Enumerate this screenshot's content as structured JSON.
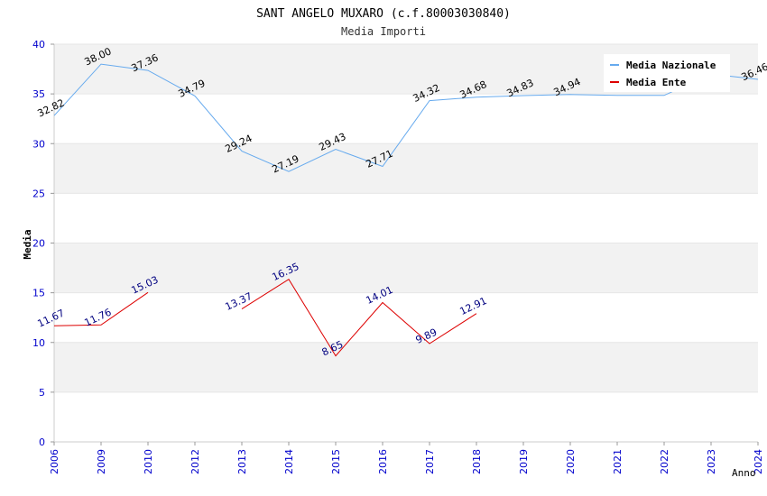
{
  "chart_data": {
    "type": "line",
    "title": "SANT ANGELO MUXARO (c.f.80003030840)",
    "subtitle": "Media Importi",
    "xlabel": "Anno",
    "ylabel": "Media",
    "ylim": [
      0,
      40
    ],
    "yticks": [
      0,
      5,
      10,
      15,
      20,
      25,
      30,
      35,
      40
    ],
    "grid": true,
    "legend_position": "top-right",
    "categories": [
      "2006",
      "2009",
      "2010",
      "2012",
      "2013",
      "2014",
      "2015",
      "2016",
      "2017",
      "2018",
      "2019",
      "2020",
      "2021",
      "2022",
      "2023",
      "2024"
    ],
    "series": [
      {
        "name": "Media Nazionale",
        "color": "#66aaee",
        "label_color": "#000000",
        "values": [
          32.82,
          38.0,
          37.36,
          34.79,
          29.24,
          27.19,
          29.43,
          27.71,
          34.32,
          34.68,
          34.83,
          34.94,
          34.85,
          34.85,
          37.0,
          36.46
        ],
        "labels": [
          "32.82",
          "38.00",
          "37.36",
          "34.79",
          "29.24",
          "27.19",
          "29.43",
          "27.71",
          "34.32",
          "34.68",
          "34.83",
          "34.94",
          null,
          null,
          null,
          "36.46"
        ]
      },
      {
        "name": "Media Ente",
        "color": "#dd0000",
        "label_color": "#000080",
        "values": [
          11.67,
          11.76,
          15.03,
          null,
          13.37,
          16.35,
          8.65,
          14.01,
          9.89,
          12.91,
          null,
          null,
          null,
          null,
          null,
          null
        ],
        "labels": [
          "11.67",
          "11.76",
          "15.03",
          null,
          "13.37",
          "16.35",
          "8.65",
          "14.01",
          "9.89",
          "12.91",
          null,
          null,
          null,
          null,
          null,
          null
        ]
      }
    ]
  }
}
